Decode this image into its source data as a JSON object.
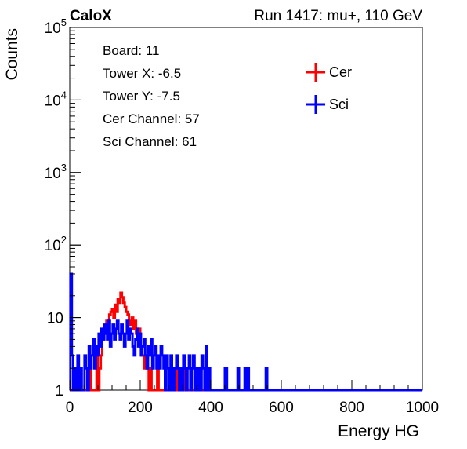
{
  "header": {
    "brand": "CaloX",
    "run_label": "Run 1417: mu+, 110 GeV"
  },
  "info_box": {
    "lines": [
      "Board: 11",
      "Tower X: -6.5",
      "Tower Y: -7.5",
      "Cer Channel: 57",
      "Sci Channel: 61"
    ]
  },
  "colors": {
    "cer": "#ff0000",
    "sci": "#0000ff",
    "axis": "#000000"
  },
  "chart_data": {
    "type": "line",
    "xlabel": "Energy HG",
    "ylabel": "Counts",
    "xlim": [
      0,
      1000
    ],
    "ylim": [
      1,
      100000
    ],
    "yscale": "log",
    "x_ticks": [
      0,
      200,
      400,
      600,
      800,
      1000
    ],
    "x_tick_labels": [
      "0",
      "200",
      "400",
      "600",
      "800",
      "1000"
    ],
    "y_ticks": [
      1,
      10,
      100,
      1000,
      10000,
      100000
    ],
    "y_tick_labels": [
      "1",
      "10",
      "10^2",
      "10^3",
      "10^4",
      "10^5"
    ],
    "legend": {
      "placement": "top-right",
      "entries": [
        "Cer",
        "Sci"
      ]
    },
    "grid": false,
    "series": [
      {
        "name": "Cer",
        "color": "#ff0000",
        "points": [
          [
            0,
            1
          ],
          [
            4,
            1
          ],
          [
            8,
            1
          ],
          [
            12,
            1
          ],
          [
            16,
            1
          ],
          [
            20,
            1
          ],
          [
            24,
            1
          ],
          [
            28,
            1
          ],
          [
            32,
            1
          ],
          [
            36,
            1
          ],
          [
            40,
            1
          ],
          [
            44,
            1
          ],
          [
            48,
            1
          ],
          [
            52,
            1
          ],
          [
            56,
            2
          ],
          [
            60,
            1
          ],
          [
            64,
            1
          ],
          [
            68,
            1
          ],
          [
            72,
            1
          ],
          [
            76,
            3
          ],
          [
            80,
            1
          ],
          [
            84,
            2
          ],
          [
            88,
            3
          ],
          [
            92,
            5
          ],
          [
            96,
            7
          ],
          [
            100,
            6
          ],
          [
            104,
            9
          ],
          [
            108,
            8
          ],
          [
            112,
            11
          ],
          [
            116,
            12
          ],
          [
            120,
            13
          ],
          [
            124,
            10
          ],
          [
            128,
            15
          ],
          [
            132,
            12
          ],
          [
            136,
            18
          ],
          [
            140,
            16
          ],
          [
            144,
            22
          ],
          [
            148,
            19
          ],
          [
            152,
            16
          ],
          [
            156,
            14
          ],
          [
            160,
            12
          ],
          [
            164,
            11
          ],
          [
            168,
            9
          ],
          [
            172,
            8
          ],
          [
            176,
            10
          ],
          [
            180,
            7
          ],
          [
            184,
            9
          ],
          [
            188,
            6
          ],
          [
            192,
            5
          ],
          [
            196,
            7
          ],
          [
            200,
            4
          ],
          [
            204,
            3
          ],
          [
            208,
            3
          ],
          [
            212,
            2
          ],
          [
            216,
            3
          ],
          [
            220,
            2
          ],
          [
            224,
            1
          ],
          [
            228,
            2
          ],
          [
            232,
            1
          ],
          [
            236,
            1
          ],
          [
            240,
            1
          ],
          [
            244,
            1
          ],
          [
            248,
            2
          ],
          [
            252,
            1
          ],
          [
            256,
            1
          ],
          [
            260,
            1
          ],
          [
            264,
            1
          ],
          [
            268,
            1
          ],
          [
            272,
            1
          ],
          [
            276,
            1
          ],
          [
            280,
            1
          ],
          [
            284,
            1
          ],
          [
            288,
            1
          ],
          [
            292,
            1
          ],
          [
            296,
            1
          ],
          [
            300,
            2
          ],
          [
            304,
            1
          ],
          [
            308,
            1
          ],
          [
            312,
            1
          ],
          [
            316,
            1
          ],
          [
            320,
            1
          ],
          [
            324,
            2
          ],
          [
            328,
            1
          ],
          [
            332,
            1
          ],
          [
            336,
            1
          ],
          [
            340,
            1
          ],
          [
            344,
            1
          ],
          [
            348,
            1
          ],
          [
            352,
            1
          ],
          [
            356,
            1
          ],
          [
            360,
            1
          ],
          [
            364,
            1
          ],
          [
            368,
            1
          ],
          [
            372,
            1
          ],
          [
            376,
            1
          ],
          [
            380,
            1
          ],
          [
            384,
            1
          ],
          [
            388,
            1
          ],
          [
            392,
            1
          ],
          [
            396,
            1
          ],
          [
            400,
            1
          ],
          [
            404,
            1
          ],
          [
            408,
            1
          ],
          [
            412,
            1
          ],
          [
            416,
            1
          ],
          [
            420,
            1
          ],
          [
            1000,
            1
          ]
        ]
      },
      {
        "name": "Sci",
        "color": "#0000ff",
        "points": [
          [
            0,
            1
          ],
          [
            2,
            40
          ],
          [
            6,
            3
          ],
          [
            10,
            1
          ],
          [
            14,
            2
          ],
          [
            18,
            1
          ],
          [
            22,
            3
          ],
          [
            26,
            1
          ],
          [
            30,
            2
          ],
          [
            34,
            1
          ],
          [
            38,
            1
          ],
          [
            42,
            3
          ],
          [
            46,
            2
          ],
          [
            50,
            1
          ],
          [
            54,
            4
          ],
          [
            58,
            2
          ],
          [
            62,
            3
          ],
          [
            66,
            5
          ],
          [
            70,
            2
          ],
          [
            74,
            4
          ],
          [
            78,
            3
          ],
          [
            82,
            6
          ],
          [
            86,
            4
          ],
          [
            90,
            7
          ],
          [
            94,
            5
          ],
          [
            98,
            8
          ],
          [
            102,
            6
          ],
          [
            106,
            5
          ],
          [
            110,
            9
          ],
          [
            114,
            4
          ],
          [
            118,
            6
          ],
          [
            122,
            8
          ],
          [
            126,
            5
          ],
          [
            130,
            7
          ],
          [
            134,
            9
          ],
          [
            138,
            6
          ],
          [
            142,
            5
          ],
          [
            146,
            8
          ],
          [
            150,
            6
          ],
          [
            154,
            4
          ],
          [
            158,
            6
          ],
          [
            162,
            9
          ],
          [
            166,
            5
          ],
          [
            170,
            7
          ],
          [
            174,
            6
          ],
          [
            178,
            4
          ],
          [
            182,
            3
          ],
          [
            186,
            5
          ],
          [
            190,
            7
          ],
          [
            194,
            4
          ],
          [
            198,
            6
          ],
          [
            202,
            3
          ],
          [
            206,
            4
          ],
          [
            210,
            5
          ],
          [
            214,
            3
          ],
          [
            218,
            2
          ],
          [
            222,
            4
          ],
          [
            226,
            3
          ],
          [
            230,
            5
          ],
          [
            234,
            2
          ],
          [
            238,
            3
          ],
          [
            242,
            4
          ],
          [
            246,
            2
          ],
          [
            250,
            3
          ],
          [
            254,
            2
          ],
          [
            258,
            4
          ],
          [
            262,
            3
          ],
          [
            266,
            2
          ],
          [
            270,
            1
          ],
          [
            274,
            3
          ],
          [
            278,
            2
          ],
          [
            282,
            1
          ],
          [
            286,
            3
          ],
          [
            290,
            2
          ],
          [
            294,
            1
          ],
          [
            298,
            2
          ],
          [
            302,
            3
          ],
          [
            306,
            2
          ],
          [
            310,
            1
          ],
          [
            314,
            2
          ],
          [
            318,
            1
          ],
          [
            322,
            3
          ],
          [
            326,
            2
          ],
          [
            330,
            1
          ],
          [
            334,
            2
          ],
          [
            338,
            3
          ],
          [
            342,
            1
          ],
          [
            346,
            2
          ],
          [
            350,
            3
          ],
          [
            354,
            1
          ],
          [
            358,
            2
          ],
          [
            362,
            1
          ],
          [
            366,
            2
          ],
          [
            370,
            1
          ],
          [
            374,
            3
          ],
          [
            378,
            2
          ],
          [
            382,
            1
          ],
          [
            386,
            4
          ],
          [
            390,
            1
          ],
          [
            394,
            2
          ],
          [
            398,
            1
          ],
          [
            402,
            1
          ],
          [
            410,
            1
          ],
          [
            420,
            1
          ],
          [
            430,
            1
          ],
          [
            440,
            2
          ],
          [
            446,
            1
          ],
          [
            450,
            1
          ],
          [
            460,
            1
          ],
          [
            470,
            1
          ],
          [
            476,
            2
          ],
          [
            480,
            1
          ],
          [
            490,
            1
          ],
          [
            496,
            2
          ],
          [
            500,
            1
          ],
          [
            504,
            2
          ],
          [
            508,
            1
          ],
          [
            520,
            1
          ],
          [
            540,
            1
          ],
          [
            556,
            2
          ],
          [
            560,
            1
          ],
          [
            580,
            1
          ],
          [
            1000,
            1
          ]
        ]
      }
    ]
  }
}
